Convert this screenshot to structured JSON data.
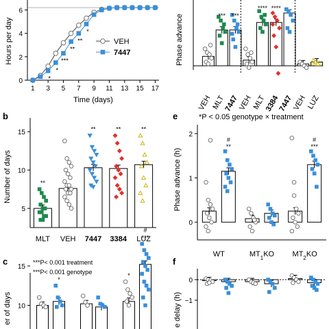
{
  "figure": {
    "panels": {
      "b": "b",
      "c": "c",
      "e": "e",
      "f": "f"
    }
  },
  "chart_data": [
    {
      "id": "a",
      "type": "line",
      "xlabel": "Time (days)",
      "ylabel": "Hours per day",
      "x_ticks": [
        "1",
        "3",
        "5",
        "7",
        "9",
        "11",
        "13",
        "15",
        "17"
      ],
      "y_ticks": [
        "0",
        "2",
        "4",
        "6"
      ],
      "ylim": [
        0,
        6.5
      ],
      "series": [
        {
          "name": "VEH",
          "marker": "circle-open",
          "x": [
            1,
            2,
            3,
            4,
            5,
            6,
            7,
            8,
            9,
            10,
            11,
            12,
            13,
            14,
            15,
            16,
            17
          ],
          "y": [
            0,
            0.4,
            1.2,
            2.3,
            3.2,
            4.0,
            4.7,
            5.3,
            5.8,
            6.05,
            6.15,
            6.2,
            6.2,
            6.2,
            6.2,
            6.2,
            6.2
          ]
        },
        {
          "name": "7447",
          "bold": true,
          "marker": "square-filled",
          "color": "#3a8fd9",
          "x": [
            1,
            2,
            3,
            4,
            5,
            6,
            7,
            8,
            9,
            10,
            11,
            12,
            13,
            14,
            15,
            16,
            17
          ],
          "y": [
            0,
            0.3,
            0.8,
            1.5,
            2.3,
            3.3,
            4.0,
            4.8,
            5.6,
            6.0,
            6.15,
            6.2,
            6.2,
            6.2,
            6.2,
            6.2,
            6.2
          ]
        }
      ],
      "significance": [
        {
          "x": 3,
          "label": "*"
        },
        {
          "x": 4,
          "label": "*"
        },
        {
          "x": 5,
          "label": "***"
        },
        {
          "x": 6,
          "label": "**"
        },
        {
          "x": 7,
          "label": "**"
        },
        {
          "x": 8,
          "label": "*"
        }
      ]
    },
    {
      "id": "a-right",
      "type": "bar",
      "ylabel": "Phase advance",
      "categories": [
        {
          "label": "VEH",
          "bold": false,
          "value": 0.25,
          "color": "#ffffff",
          "marker": "circle-open",
          "points": [
            0.45,
            0.35,
            0.3,
            0.2,
            0.1,
            0.05,
            0.55
          ]
        },
        {
          "label": "MLT",
          "bold": false,
          "value": 0.95,
          "color": "#ffffff",
          "marker": "square-green",
          "points": [
            1.3,
            1.2,
            1.0,
            0.9,
            0.8,
            0.6,
            1.1
          ]
        },
        {
          "label": "7447",
          "bold": true,
          "value": 0.95,
          "color": "#ffffff",
          "marker": "square-blue",
          "points": [
            1.35,
            1.2,
            1.0,
            0.9,
            0.7,
            0.5,
            1.1,
            0.85
          ]
        },
        {
          "label": "VEH",
          "bold": false,
          "value": 0.15,
          "color": "#ffffff",
          "marker": "circle-open",
          "points": [
            0.45,
            0.3,
            0.2,
            0.1,
            0.05,
            -0.05,
            0.35
          ]
        },
        {
          "label": "MLT",
          "bold": false,
          "value": 1.15,
          "color": "#ffffff",
          "marker": "square-green",
          "points": [
            1.45,
            1.3,
            1.2,
            1.1,
            1.0,
            0.9,
            1.35
          ]
        },
        {
          "label": "3384",
          "bold": true,
          "value": 1.15,
          "color": "#ffffff",
          "marker": "diamond-red",
          "points": [
            1.4,
            1.3,
            1.2,
            1.0,
            0.8,
            0.5,
            -0.2,
            1.1
          ]
        },
        {
          "label": "7447",
          "bold": true,
          "value": 1.4,
          "color": "#ffffff",
          "marker": "square-blue",
          "points": [
            1.5,
            1.45,
            1.35,
            1.2,
            1.0,
            0.9
          ]
        },
        {
          "label": "VEH",
          "bold": false,
          "value": 0.05,
          "color": "#ffffff",
          "marker": "circle-open",
          "points": [
            0.1,
            0.05,
            0.0,
            -0.05
          ]
        },
        {
          "label": "LUZ",
          "bold": false,
          "value": 0.1,
          "color": "#f3e9a0",
          "marker": "triangle-yellow",
          "points": [
            0.15,
            0.1,
            0.05
          ]
        }
      ],
      "significance": [
        {
          "index": 1,
          "label": "***"
        },
        {
          "index": 2,
          "label": "***"
        },
        {
          "index": 4,
          "label": "****"
        },
        {
          "index": 5,
          "label": "****"
        }
      ]
    },
    {
      "id": "b",
      "type": "bar",
      "ylabel": "Number of days",
      "y_ticks": [
        "5",
        "10",
        "15"
      ],
      "ylim": [
        2.5,
        16.8
      ],
      "categories": [
        {
          "label": "MLT",
          "bold": false,
          "value": 5.0,
          "marker": "square-green",
          "points": [
            7.5,
            7.0,
            6.5,
            6.0,
            5.5,
            5.0,
            5.0,
            4.5,
            4.5,
            4.0,
            4.0,
            3.5,
            3.5
          ]
        },
        {
          "label": "VEH",
          "bold": false,
          "value": 7.6,
          "marker": "circle-open",
          "points": [
            13.8,
            11.5,
            11.0,
            10.5,
            10.0,
            9.5,
            9.0,
            8.5,
            8.0,
            8.0,
            7.5,
            7.5,
            7.0,
            7.0,
            6.5,
            6.0,
            5.5,
            5.0
          ]
        },
        {
          "label": "7447",
          "bold": true,
          "value": 10.3,
          "marker": "triangle-blue",
          "points": [
            14.5,
            13.0,
            12.5,
            12.0,
            11.5,
            11.0,
            10.5,
            10.0,
            9.5,
            9.0,
            8.5,
            8.0,
            7.8
          ]
        },
        {
          "label": "3384",
          "bold": true,
          "value": 10.2,
          "marker": "diamond-red",
          "points": [
            14.5,
            13.5,
            12.5,
            11.5,
            10.5,
            10.0,
            9.5,
            9.0,
            8.0,
            7.5,
            7.0,
            6.5
          ]
        },
        {
          "label": "LUZ",
          "bold": false,
          "value": 10.7,
          "marker": "triangle-yellow",
          "points": [
            14.5,
            13.5,
            12.0,
            11.0,
            10.5,
            9.0,
            8.0,
            7.0,
            6.0
          ]
        }
      ],
      "significance": [
        {
          "index": 0,
          "label": "**"
        },
        {
          "index": 2,
          "label": "**"
        },
        {
          "index": 3,
          "label": "**"
        },
        {
          "index": 4,
          "label": "**"
        }
      ]
    },
    {
      "id": "c",
      "type": "bar",
      "ylabel": "er of days",
      "y_ticks": [
        "10",
        "15"
      ],
      "notes": [
        "***P< 0.001 treatment",
        "***P< 0.001 genotype"
      ],
      "categories": [
        {
          "value": 10.0,
          "marker": "circle-open",
          "points": [
            11.0,
            10.2,
            10.0,
            9.8
          ]
        },
        {
          "value": 10.5,
          "marker": "square-blue",
          "points": [
            12.5,
            11.0,
            10.5,
            10.0,
            9.8
          ]
        },
        {
          "value": 10.2,
          "marker": "circle-open",
          "points": [
            11.2,
            10.4,
            10.0
          ]
        },
        {
          "value": 9.8,
          "marker": "square-blue",
          "points": [
            11.0,
            10.2,
            10.0,
            9.8
          ]
        },
        {
          "value": 10.5,
          "marker": "circle-open",
          "points": [
            13.0,
            12.0,
            11.5,
            11.0,
            10.5,
            10.0
          ]
        },
        {
          "value": 15.2,
          "marker": "square-blue",
          "points": [
            17.8,
            17.0,
            16.5,
            16.0,
            15.5,
            15.0,
            14.5,
            14.0,
            13.0,
            12.5,
            12.0,
            11.0,
            10.0
          ]
        }
      ],
      "significance": [
        {
          "index": 1,
          "label": "*"
        },
        {
          "index": 4,
          "label": "*"
        },
        {
          "index": 5,
          "label": "***"
        },
        {
          "index": 5,
          "label": "#"
        }
      ]
    },
    {
      "id": "e",
      "type": "bar",
      "title": "*P < 0.05 genotype × treatment",
      "ylabel": "Phase advance (h)",
      "y_ticks": [
        "0",
        "1",
        "2"
      ],
      "ylim": [
        -0.4,
        2.2
      ],
      "groups": [
        {
          "label": "WT",
          "sub": "",
          "bars": [
            {
              "value": 0.25,
              "marker": "circle-open",
              "points": [
                0.9,
                0.5,
                0.4,
                0.3,
                0.2,
                0.1,
                0.0,
                -0.1,
                -0.2,
                1.85
              ]
            },
            {
              "value": 1.15,
              "marker": "square-blue",
              "points": [
                1.6,
                1.4,
                1.3,
                1.2,
                1.1,
                1.0,
                0.9,
                0.8,
                0.7
              ]
            }
          ]
        },
        {
          "label": "MT",
          "sub": "1",
          "suffix": "KO",
          "bars": [
            {
              "value": 0.08,
              "marker": "circle-open",
              "points": [
                0.3,
                0.2,
                0.1,
                0.0,
                -0.1,
                -0.2,
                0.05
              ]
            },
            {
              "value": 0.2,
              "marker": "square-blue",
              "points": [
                0.4,
                0.3,
                0.2,
                0.15,
                0.1,
                0.0,
                -0.05
              ]
            }
          ]
        },
        {
          "label": "MT",
          "sub": "2",
          "suffix": "KO",
          "bars": [
            {
              "value": 0.25,
              "marker": "circle-open",
              "points": [
                1.9,
                0.6,
                0.3,
                0.2,
                0.1,
                0.0,
                -0.1,
                -0.2,
                0.9
              ]
            },
            {
              "value": 1.3,
              "marker": "square-blue",
              "points": [
                1.6,
                1.5,
                1.4,
                1.3,
                1.2,
                1.1,
                0.8
              ]
            }
          ]
        }
      ],
      "significance": [
        {
          "group": 0,
          "bar": 1,
          "label": "**"
        },
        {
          "group": 0,
          "bar": 1,
          "label": "#"
        },
        {
          "group": 2,
          "bar": 1,
          "label": "***"
        },
        {
          "group": 2,
          "bar": 1,
          "label": "#"
        }
      ]
    },
    {
      "id": "f",
      "type": "bar",
      "ylabel": "e delay (h)",
      "y_ticks": [
        "0",
        "−1"
      ],
      "groups": [
        {
          "bars": [
            {
              "value": -0.05,
              "marker": "circle-open",
              "points": [
                0.05,
                0.0,
                -0.05,
                -0.1,
                -0.2,
                -0.15
              ]
            },
            {
              "value": -0.1,
              "marker": "square-blue",
              "points": [
                0.0,
                -0.1,
                -0.2,
                -0.3,
                -0.4,
                -0.65
              ]
            }
          ]
        },
        {
          "bars": [
            {
              "value": -0.1,
              "marker": "circle-open",
              "points": [
                0.0,
                -0.1,
                -0.15,
                -0.2
              ]
            },
            {
              "value": -0.2,
              "marker": "square-blue",
              "points": [
                0.0,
                -0.1,
                -0.2,
                -0.4,
                -0.6
              ]
            }
          ]
        },
        {
          "bars": [
            {
              "value": 0.05,
              "marker": "circle-open",
              "points": [
                0.2,
                0.1,
                0.0,
                -0.1,
                -0.15
              ]
            },
            {
              "value": -0.15,
              "marker": "square-blue",
              "points": [
                0.1,
                0.0,
                -0.1,
                -0.2,
                -0.3,
                -0.4,
                -0.5
              ]
            }
          ]
        }
      ]
    }
  ]
}
